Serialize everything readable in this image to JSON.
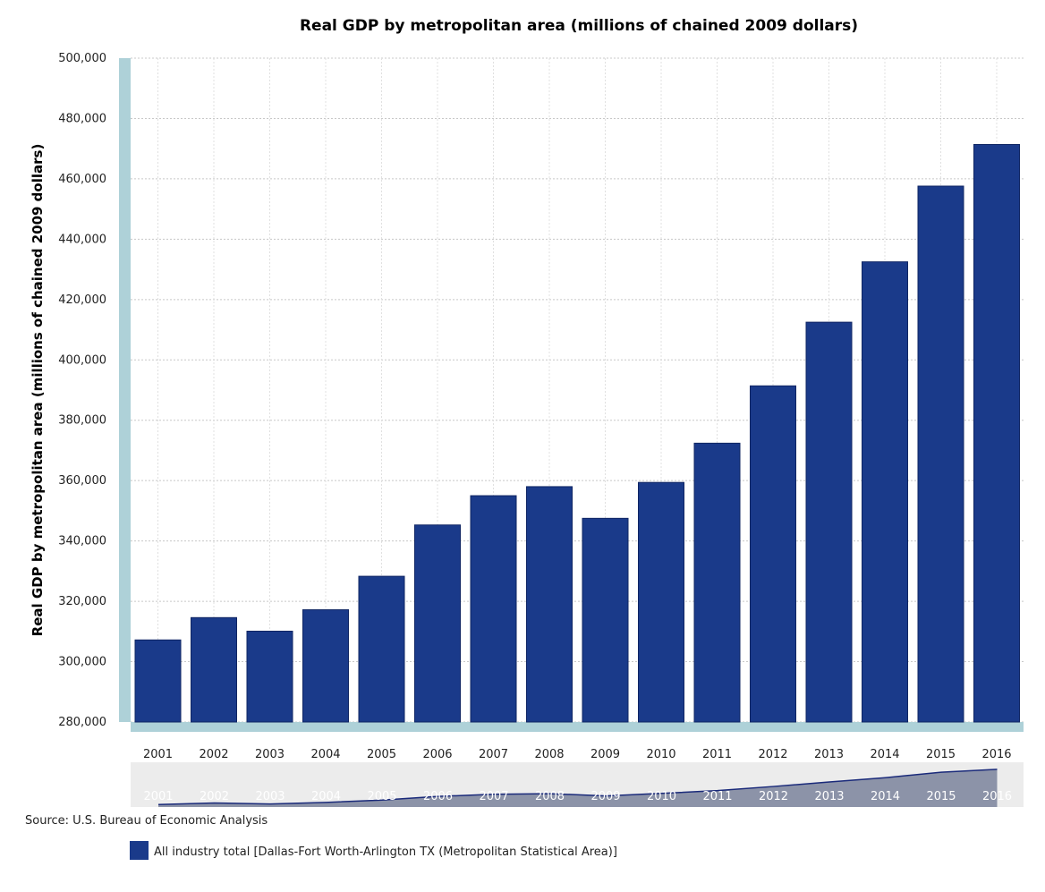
{
  "colors": {
    "bar": "#1a3a8a",
    "bar_stroke": "#0f2563",
    "axis_band": "#aed1d8",
    "grid": "#c8c8c8",
    "navigator_bg": "#ececec",
    "navigator_area": "#8c93a8",
    "navigator_line": "#1a2a7a"
  },
  "source": "Source: U.S. Bureau of Economic Analysis",
  "chart_data": {
    "type": "bar",
    "title": "Real GDP by metropolitan area (millions of chained 2009 dollars)",
    "xlabel": "",
    "ylabel": "Real GDP by metropolitan area (millions of chained 2009 dollars)",
    "ylim": [
      280000,
      500000
    ],
    "yticks": [
      280000,
      300000,
      320000,
      340000,
      360000,
      380000,
      400000,
      420000,
      440000,
      460000,
      480000,
      500000
    ],
    "ytick_labels": [
      "280,000",
      "300,000",
      "320,000",
      "340,000",
      "360,000",
      "380,000",
      "400,000",
      "420,000",
      "440,000",
      "460,000",
      "480,000",
      "500,000"
    ],
    "grid": true,
    "legend_position": "bottom-left",
    "categories": [
      "2001",
      "2002",
      "2003",
      "2004",
      "2005",
      "2006",
      "2007",
      "2008",
      "2009",
      "2010",
      "2011",
      "2012",
      "2013",
      "2014",
      "2015",
      "2016"
    ],
    "series": [
      {
        "name": "All industry total [Dallas-Fort Worth-Arlington TX (Metropolitan Statistical Area)]",
        "values": [
          307200,
          314600,
          310100,
          317200,
          328300,
          345300,
          355000,
          358000,
          347500,
          359400,
          372400,
          391400,
          412500,
          432500,
          457600,
          471400
        ]
      }
    ]
  }
}
